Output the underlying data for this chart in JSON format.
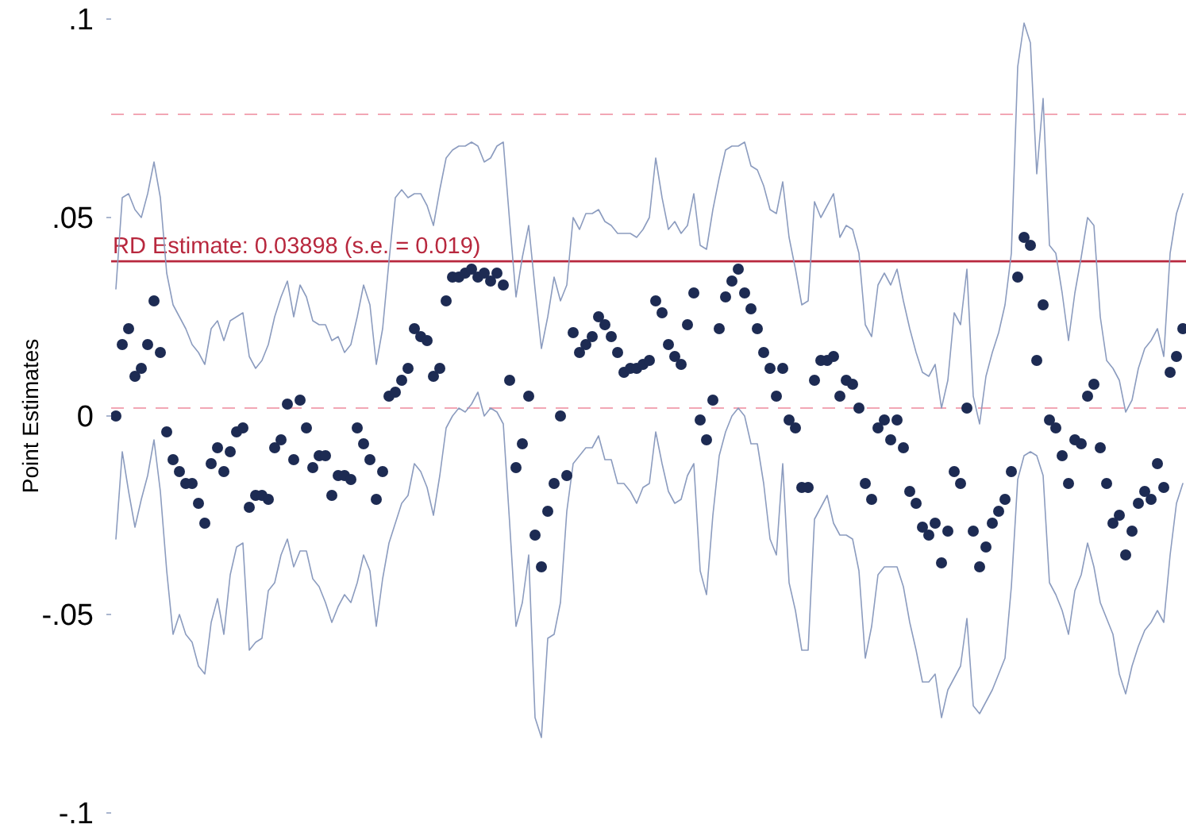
{
  "chart_data": {
    "type": "scatter",
    "ylabel": "Point Estimates",
    "categories": [
      null,
      null,
      null,
      null,
      null,
      null,
      null,
      null,
      null,
      null,
      null,
      null,
      null,
      null,
      null,
      null,
      null,
      null,
      null,
      null,
      null,
      null,
      null,
      null,
      null,
      null,
      null,
      null,
      null,
      null,
      null,
      null,
      null,
      null,
      null,
      null,
      null,
      null,
      null,
      null,
      null,
      null,
      null,
      null,
      null,
      null,
      null,
      null,
      null,
      null,
      null,
      null,
      null,
      null,
      null,
      null,
      null,
      null,
      null,
      null,
      null,
      null,
      null,
      null,
      null,
      null,
      null,
      null,
      null,
      null,
      null,
      null,
      null,
      null,
      null,
      null,
      null,
      null,
      null,
      null,
      null,
      null,
      null,
      null,
      null,
      null,
      null,
      null,
      null,
      null,
      null,
      null,
      null,
      null,
      null,
      null,
      null,
      null,
      null,
      null,
      null,
      null,
      null,
      null,
      null,
      null,
      null,
      null,
      null,
      null,
      null,
      null,
      null,
      null,
      null,
      null,
      null,
      null,
      null,
      null,
      null,
      null,
      null,
      null,
      null,
      null,
      null,
      null,
      null,
      null,
      null,
      null,
      null,
      null,
      null,
      null,
      null,
      null,
      null,
      null,
      null,
      null,
      null,
      null,
      null,
      null,
      null,
      null,
      null,
      null,
      null,
      null,
      null,
      null,
      null,
      null,
      null,
      null,
      null,
      null,
      null,
      null,
      null,
      null,
      null,
      null,
      null,
      null,
      null
    ],
    "series": [
      {
        "type": "line",
        "color": "#8c9cbf",
        "values": [
          0.032,
          0.055,
          0.056,
          0.052,
          0.05,
          0.056,
          0.064,
          0.055,
          0.036,
          0.028,
          0.025,
          0.022,
          0.018,
          0.016,
          0.013,
          0.022,
          0.024,
          0.019,
          0.024,
          0.025,
          0.026,
          0.015,
          0.012,
          0.014,
          0.018,
          0.025,
          0.03,
          0.034,
          0.025,
          0.033,
          0.03,
          0.024,
          0.023,
          0.023,
          0.019,
          0.02,
          0.016,
          0.018,
          0.025,
          0.033,
          0.028,
          0.013,
          0.022,
          0.039,
          0.055,
          0.057,
          0.055,
          0.056,
          0.056,
          0.053,
          0.048,
          0.057,
          0.065,
          0.067,
          0.068,
          0.068,
          0.069,
          0.068,
          0.064,
          0.065,
          0.068,
          0.069,
          0.049,
          0.03,
          0.04,
          0.048,
          0.032,
          0.017,
          0.025,
          0.035,
          0.029,
          0.033,
          0.05,
          0.047,
          0.051,
          0.051,
          0.052,
          0.049,
          0.048,
          0.046,
          0.046,
          0.046,
          0.045,
          0.047,
          0.05,
          0.065,
          0.055,
          0.047,
          0.049,
          0.046,
          0.048,
          0.056,
          0.043,
          0.042,
          0.052,
          0.06,
          0.067,
          0.068,
          0.068,
          0.069,
          0.063,
          0.062,
          0.058,
          0.052,
          0.051,
          0.059,
          0.045,
          0.037,
          0.028,
          0.029,
          0.054,
          0.05,
          0.053,
          0.056,
          0.045,
          0.048,
          0.047,
          0.041,
          0.023,
          0.02,
          0.033,
          0.036,
          0.033,
          0.037,
          0.029,
          0.022,
          0.016,
          0.011,
          0.01,
          0.013,
          0.002,
          0.009,
          0.026,
          0.023,
          0.037,
          0.005,
          -0.002,
          0.01,
          0.016,
          0.021,
          0.028,
          0.041,
          0.088,
          0.099,
          0.094,
          0.061,
          0.08,
          0.043,
          0.041,
          0.031,
          0.019,
          0.031,
          0.04,
          0.05,
          0.048,
          0.025,
          0.014,
          0.012,
          0.009,
          0.001,
          0.004,
          0.012,
          0.017,
          0.019,
          0.022,
          0.015,
          0.041,
          0.051,
          0.056
        ]
      },
      {
        "type": "line",
        "color": "#8c9cbf",
        "values": [
          -0.031,
          -0.009,
          -0.019,
          -0.028,
          -0.021,
          -0.015,
          -0.006,
          -0.019,
          -0.039,
          -0.055,
          -0.05,
          -0.055,
          -0.057,
          -0.063,
          -0.065,
          -0.052,
          -0.046,
          -0.055,
          -0.04,
          -0.033,
          -0.032,
          -0.059,
          -0.057,
          -0.056,
          -0.044,
          -0.042,
          -0.035,
          -0.031,
          -0.038,
          -0.034,
          -0.034,
          -0.041,
          -0.043,
          -0.047,
          -0.052,
          -0.048,
          -0.045,
          -0.047,
          -0.042,
          -0.035,
          -0.039,
          -0.053,
          -0.041,
          -0.032,
          -0.027,
          -0.022,
          -0.02,
          -0.012,
          -0.014,
          -0.018,
          -0.025,
          -0.015,
          -0.003,
          0,
          0.002,
          0.001,
          0.003,
          0.006,
          0,
          0.002,
          0.001,
          -0.002,
          -0.027,
          -0.053,
          -0.047,
          -0.035,
          -0.076,
          -0.081,
          -0.056,
          -0.055,
          -0.047,
          -0.024,
          -0.012,
          -0.01,
          -0.008,
          -0.008,
          -0.005,
          -0.011,
          -0.011,
          -0.017,
          -0.017,
          -0.019,
          -0.022,
          -0.018,
          -0.017,
          -0.004,
          -0.012,
          -0.019,
          -0.022,
          -0.021,
          -0.015,
          -0.012,
          -0.039,
          -0.045,
          -0.025,
          -0.01,
          -0.004,
          0,
          0.002,
          0,
          -0.007,
          -0.007,
          -0.017,
          -0.031,
          -0.035,
          -0.012,
          -0.042,
          -0.049,
          -0.059,
          -0.059,
          -0.026,
          -0.023,
          -0.02,
          -0.027,
          -0.03,
          -0.03,
          -0.031,
          -0.039,
          -0.061,
          -0.053,
          -0.04,
          -0.038,
          -0.038,
          -0.038,
          -0.043,
          -0.052,
          -0.059,
          -0.067,
          -0.067,
          -0.065,
          -0.076,
          -0.069,
          -0.066,
          -0.063,
          -0.051,
          -0.073,
          -0.075,
          -0.072,
          -0.069,
          -0.065,
          -0.061,
          -0.043,
          -0.016,
          -0.01,
          -0.009,
          -0.01,
          -0.015,
          -0.042,
          -0.045,
          -0.049,
          -0.055,
          -0.044,
          -0.04,
          -0.032,
          -0.038,
          -0.047,
          -0.051,
          -0.055,
          -0.065,
          -0.07,
          -0.063,
          -0.058,
          -0.054,
          -0.052,
          -0.049,
          -0.052,
          -0.035,
          -0.022,
          -0.017
        ]
      },
      {
        "color": "#1d2b53",
        "marker": "circle",
        "values": [
          0,
          0.018,
          0.022,
          0.01,
          0.012,
          0.018,
          0.029,
          0.016,
          -0.004,
          -0.011,
          -0.014,
          -0.017,
          -0.017,
          -0.022,
          -0.027,
          -0.012,
          -0.008,
          -0.014,
          -0.009,
          -0.004,
          -0.003,
          -0.023,
          -0.02,
          -0.02,
          -0.021,
          -0.008,
          -0.006,
          0.003,
          -0.011,
          0.004,
          -0.003,
          -0.013,
          -0.01,
          -0.01,
          -0.02,
          -0.015,
          -0.015,
          -0.016,
          -0.003,
          -0.007,
          -0.011,
          -0.021,
          -0.014,
          0.005,
          0.006,
          0.009,
          0.012,
          0.022,
          0.02,
          0.019,
          0.01,
          0.012,
          0.029,
          0.035,
          0.035,
          0.036,
          0.037,
          0.035,
          0.036,
          0.034,
          0.036,
          0.033,
          0.009,
          -0.013,
          -0.007,
          0.005,
          -0.03,
          -0.038,
          -0.024,
          -0.017,
          0,
          -0.015,
          0.021,
          0.016,
          0.018,
          0.02,
          0.025,
          0.023,
          0.02,
          0.016,
          0.011,
          0.012,
          0.012,
          0.013,
          0.014,
          0.029,
          0.026,
          0.018,
          0.015,
          0.013,
          0.023,
          0.031,
          -0.001,
          -0.006,
          0.004,
          0.022,
          0.03,
          0.034,
          0.037,
          0.031,
          0.027,
          0.022,
          0.016,
          0.012,
          0.005,
          0.012,
          -0.001,
          -0.003,
          -0.018,
          -0.018,
          0.009,
          0.014,
          0.014,
          0.015,
          0.005,
          0.009,
          0.008,
          0.002,
          -0.017,
          -0.021,
          -0.003,
          -0.001,
          -0.006,
          -0.001,
          -0.008,
          -0.019,
          -0.022,
          -0.028,
          -0.03,
          -0.027,
          -0.037,
          -0.029,
          -0.014,
          -0.017,
          0.002,
          -0.029,
          -0.038,
          -0.033,
          -0.027,
          -0.024,
          -0.021,
          -0.014,
          0.035,
          0.045,
          0.043,
          0.014,
          0.028,
          -0.001,
          -0.003,
          -0.01,
          -0.017,
          -0.006,
          -0.007,
          0.005,
          0.008,
          -0.008,
          -0.017,
          -0.027,
          -0.025,
          -0.035,
          -0.029,
          -0.022,
          -0.019,
          -0.021,
          -0.012,
          -0.018,
          0.011,
          0.015,
          0.022
        ]
      }
    ],
    "ylim": [
      -0.1,
      0.1
    ],
    "yticks": [
      {
        "value": -0.1,
        "label": "-.1"
      },
      {
        "value": -0.05,
        "label": "-.05"
      },
      0,
      {
        "value": 0.05,
        "label": ".05"
      },
      {
        "value": 0.1,
        "label": ".1"
      }
    ],
    "tick_labels": "y",
    "ref_lines": [
      {
        "axis": "y",
        "value": 0.076,
        "color": "#f2a7b5",
        "line_style": "dashed"
      },
      {
        "axis": "y",
        "value": 0.002,
        "color": "#f2a7b5",
        "line_style": "dashed"
      },
      {
        "axis": "y",
        "value": 0.03898,
        "label": "RD Estimate: 0.03898 (s.e. = 0.019)",
        "color": "#b8283e",
        "line_style": "solid"
      }
    ]
  }
}
